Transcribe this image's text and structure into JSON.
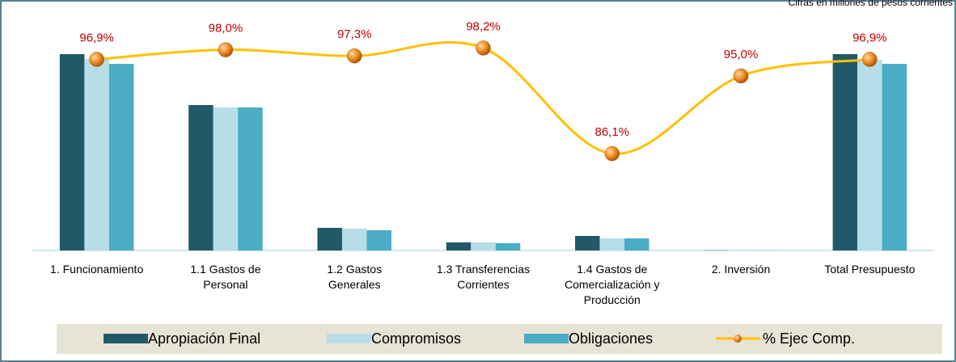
{
  "chart_data": {
    "type": "bar",
    "subtitle": "Cifras en millones de pesos corrientes",
    "categories": [
      "1. Funcionamiento",
      "1.1 Gastos de\nPersonal",
      "1.2 Gastos\nGenerales",
      "1.3 Transferencias\nCorrientes",
      "1.4 Gastos de\nComercialización y\nProducción",
      "2. Inversión",
      "Total Presupuesto"
    ],
    "ylim": [
      0,
      270
    ],
    "y2lim": [
      75,
      100
    ],
    "series": [
      {
        "name": "Apropiación Final",
        "color": "#215968",
        "values": [
          243,
          180,
          28,
          10,
          18,
          0.3,
          243
        ]
      },
      {
        "name": "Compromisos",
        "color": "#b7dee8",
        "values": [
          237,
          177,
          27,
          10,
          15,
          0.3,
          236
        ]
      },
      {
        "name": "Obligaciones",
        "color": "#4bacc6",
        "values": [
          231,
          177,
          25,
          9,
          15,
          0.2,
          231
        ]
      },
      {
        "name": "% Ejec Comp.",
        "color": "#ffc000",
        "type": "line",
        "axis": "y2",
        "values": [
          96.9,
          98.0,
          97.3,
          98.2,
          86.1,
          95.0,
          96.9
        ],
        "value_labels": [
          "96,9%",
          "98,0%",
          "97,3%",
          "98,2%",
          "86,1%",
          "95,0%",
          "96,9%"
        ]
      }
    ]
  }
}
